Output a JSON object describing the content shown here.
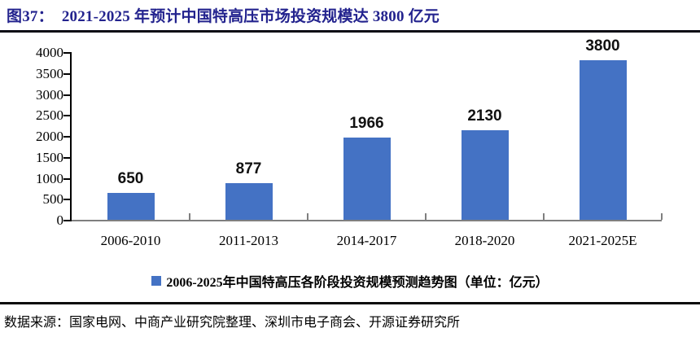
{
  "header": {
    "figure_label": "图37：",
    "title": "2021-2025 年预计中国特高压市场投资规模达 3800 亿元"
  },
  "chart_data": {
    "type": "bar",
    "categories": [
      "2006-2010",
      "2011-2013",
      "2014-2017",
      "2018-2020",
      "2021-2025E"
    ],
    "values": [
      650,
      877,
      1966,
      2130,
      3800
    ],
    "data_labels": [
      "650",
      "877",
      "1966",
      "2130",
      "3800"
    ],
    "legend": "2006-2025年中国特高压各阶段投资规模预测趋势图（单位：亿元）",
    "legend_position": "bottom",
    "title": "",
    "xlabel": "",
    "ylabel": "",
    "ylim": [
      0,
      4000
    ],
    "ytick_step": 500,
    "grid": false,
    "bar_color": "#4472C4"
  },
  "footer": {
    "source": "数据来源：国家电网、中商产业研究院整理、深圳市电子商会、开源证券研究所"
  },
  "colors": {
    "title_navy": "#23238E",
    "bar_blue": "#4472C4",
    "x_axis_gray": "#7F7F7F",
    "y_axis_black": "#000000"
  }
}
